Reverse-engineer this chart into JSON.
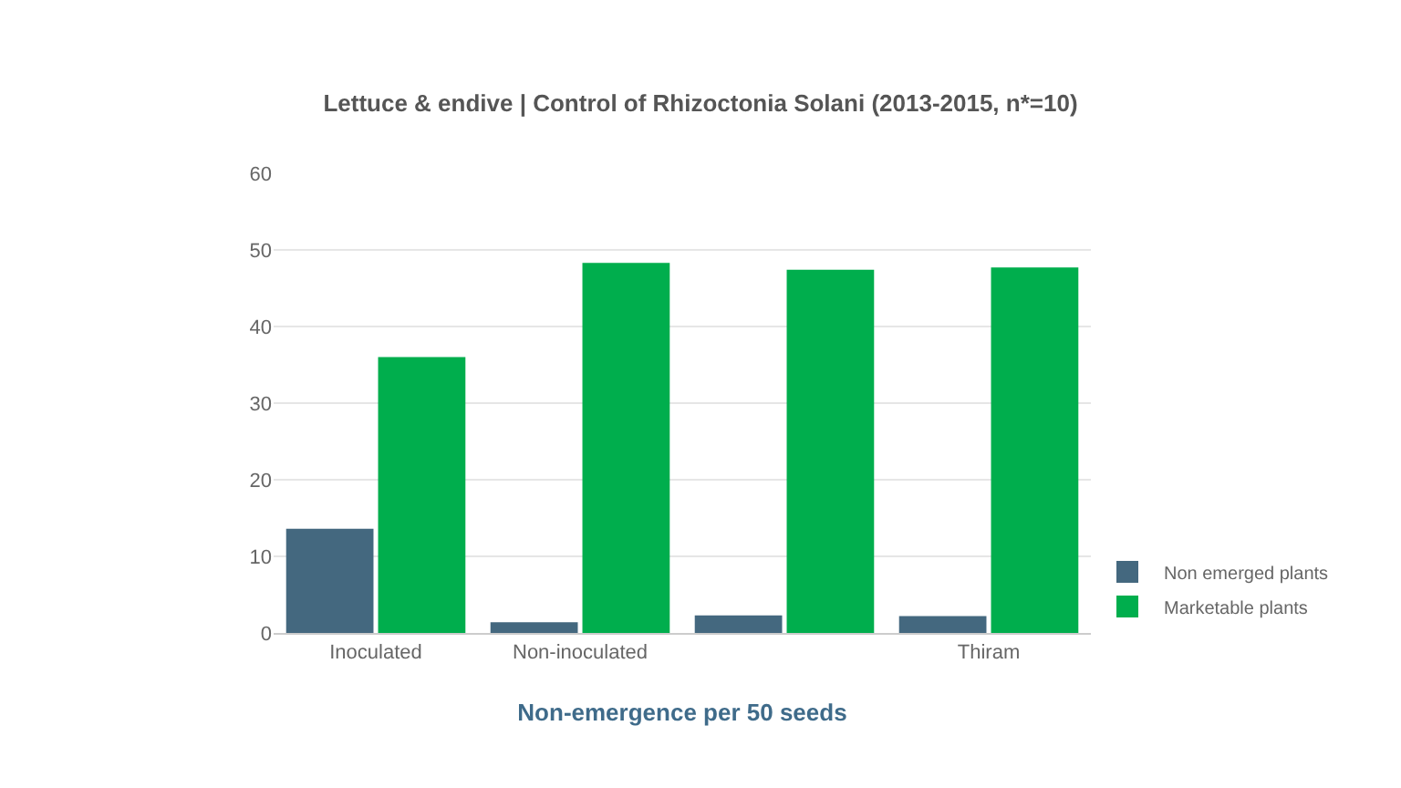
{
  "chart_data": {
    "type": "bar",
    "title": "Lettuce & endive | Control of Rhizoctonia Solani (2013-2015, n*=10)",
    "xlabel": "Non-emergence per 50 seeds",
    "categories": [
      "Inoculated",
      "Non-inoculated",
      null,
      "Thiram"
    ],
    "series": [
      {
        "name": "Non emerged plants",
        "color": "#44687f",
        "values": [
          13.6,
          1.4,
          2.3,
          2.2
        ]
      },
      {
        "name": "Marketable plants",
        "color": "#00ae4d",
        "values": [
          36.0,
          48.3,
          47.4,
          47.7
        ]
      }
    ],
    "ylim": [
      0,
      60
    ],
    "yticks": [
      0,
      10,
      20,
      30,
      40,
      50,
      60
    ],
    "grid": "y",
    "legend": "bottom right"
  }
}
